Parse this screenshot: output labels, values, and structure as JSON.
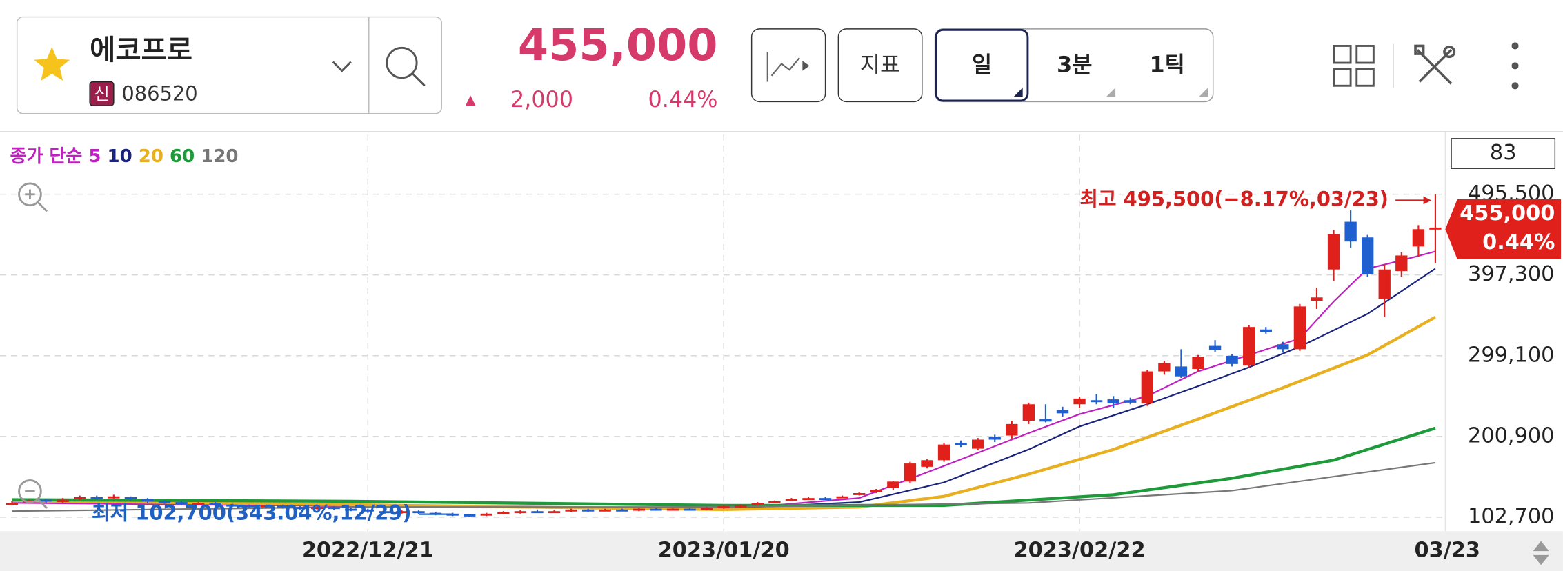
{
  "header": {
    "name": "에코프로",
    "badge": "신",
    "code": "086520",
    "price": "455,000",
    "change_arrow": "▲",
    "change": "2,000",
    "change_pct": "0.44%",
    "buttons": [
      "지표",
      "일",
      "3분",
      "1틱"
    ]
  },
  "chart_data": {
    "type": "candlestick",
    "legend_prefix": "종가 단순",
    "count_box": "83",
    "price_tag": {
      "price": "455,000",
      "pct": "0.44%"
    },
    "annotations": {
      "high": "최고 495,500(−8.17%,03/23)",
      "low": "최저 102,700(343.04%,12/29)"
    },
    "up_color": "#e0201a",
    "down_color": "#1f5fd0",
    "categories": [
      null,
      null,
      null,
      null,
      null,
      null,
      null,
      null,
      null,
      null,
      null,
      null,
      null,
      null,
      null,
      null,
      null,
      null,
      null,
      null,
      null,
      "2022/12/21",
      null,
      null,
      null,
      null,
      null,
      null,
      null,
      null,
      null,
      null,
      null,
      null,
      null,
      null,
      null,
      null,
      null,
      null,
      null,
      null,
      "2023/01/20",
      null,
      null,
      null,
      null,
      null,
      null,
      null,
      null,
      null,
      null,
      null,
      null,
      null,
      null,
      null,
      null,
      null,
      null,
      null,
      null,
      "2023/02/22",
      null,
      null,
      null,
      null,
      null,
      null,
      null,
      null,
      null,
      null,
      null,
      null,
      null,
      null,
      null,
      null,
      null,
      null,
      null,
      null,
      "03/23"
    ],
    "open": [
      118000,
      121000,
      124000,
      121000,
      125000,
      127000,
      126000,
      127000,
      125000,
      122000,
      121000,
      119000,
      120000,
      118000,
      117000,
      116000,
      117000,
      115000,
      114000,
      115000,
      113000,
      112000,
      110000,
      109000,
      110000,
      108000,
      107000,
      106000,
      105000,
      107000,
      109000,
      110000,
      109000,
      110000,
      112000,
      111000,
      112000,
      111000,
      113000,
      112000,
      113000,
      112000,
      114000,
      116000,
      118000,
      121000,
      123000,
      125000,
      126000,
      127000,
      131000,
      134000,
      138000,
      146000,
      164000,
      172000,
      193000,
      186000,
      200000,
      202000,
      220000,
      222000,
      233000,
      240000,
      245000,
      246000,
      245000,
      241000,
      280000,
      286000,
      283000,
      311000,
      299000,
      287000,
      331000,
      313000,
      307000,
      366000,
      404000,
      462000,
      443000,
      368000,
      402000,
      432000,
      453000
    ],
    "high": [
      122000,
      124000,
      125000,
      126000,
      129000,
      129000,
      130000,
      128000,
      126000,
      123000,
      122000,
      121000,
      121000,
      119000,
      118000,
      118000,
      118000,
      116000,
      116000,
      116000,
      114000,
      113000,
      112000,
      111000,
      111000,
      109000,
      108000,
      106000,
      108000,
      110000,
      111000,
      112000,
      111000,
      113000,
      113000,
      113000,
      113000,
      114000,
      114000,
      114000,
      114000,
      115000,
      117000,
      118000,
      121000,
      123000,
      126000,
      127000,
      127000,
      129000,
      133000,
      137000,
      147000,
      170000,
      173000,
      193000,
      196000,
      199000,
      203000,
      220000,
      242000,
      240000,
      237000,
      249000,
      252000,
      250000,
      248000,
      282000,
      293000,
      307000,
      300000,
      318000,
      301000,
      336000,
      334000,
      316000,
      362000,
      382000,
      452000,
      476000,
      446000,
      410000,
      425000,
      458000,
      495500
    ],
    "low": [
      117000,
      119000,
      120000,
      120000,
      123000,
      124000,
      125000,
      123000,
      120000,
      119000,
      117000,
      117000,
      116000,
      115000,
      114000,
      114000,
      113000,
      112000,
      112000,
      111000,
      110000,
      108000,
      107000,
      107000,
      106000,
      105000,
      104000,
      102700,
      104000,
      106000,
      107000,
      108000,
      108000,
      109000,
      109000,
      110000,
      110000,
      110000,
      111000,
      111000,
      111000,
      111000,
      113000,
      114000,
      117000,
      120000,
      122000,
      124000,
      124000,
      126000,
      129000,
      132000,
      136000,
      144000,
      162000,
      170000,
      188000,
      184000,
      194000,
      198000,
      216000,
      218000,
      225000,
      236000,
      240000,
      236000,
      240000,
      238000,
      276000,
      272000,
      280000,
      304000,
      286000,
      285000,
      326000,
      303000,
      305000,
      356000,
      390000,
      430000,
      395000,
      346000,
      395000,
      420000,
      412000
    ],
    "close": [
      120000,
      123000,
      122000,
      124000,
      127000,
      126000,
      128000,
      125000,
      122000,
      121000,
      119000,
      120000,
      118000,
      117000,
      116000,
      117000,
      115000,
      114000,
      115000,
      113000,
      112000,
      110000,
      109000,
      110000,
      108000,
      107000,
      106000,
      105000,
      107000,
      109000,
      110000,
      109000,
      110000,
      112000,
      111000,
      112000,
      111000,
      113000,
      112000,
      113000,
      112000,
      114000,
      116000,
      117000,
      120000,
      122000,
      125000,
      126000,
      125000,
      128000,
      132000,
      136000,
      146000,
      168000,
      172000,
      191000,
      190000,
      197000,
      197000,
      216000,
      240000,
      219000,
      229000,
      247000,
      243000,
      241000,
      242000,
      280000,
      290000,
      274000,
      298000,
      306000,
      289000,
      334000,
      328000,
      307000,
      359000,
      370000,
      447000,
      438000,
      398000,
      404000,
      421000,
      453000,
      455000
    ],
    "ma_series": [
      {
        "name": "5",
        "color": "#c020c0",
        "x": [
          0,
          42,
          50,
          55,
          60,
          63,
          67,
          70,
          73,
          76,
          78,
          80,
          82,
          84
        ],
        "values": [
          120000,
          112000,
          126000,
          165000,
          205000,
          228000,
          250000,
          280000,
          300000,
          320000,
          365000,
          405000,
          415000,
          426000
        ]
      },
      {
        "name": "10",
        "color": "#1a237e",
        "x": [
          0,
          42,
          50,
          55,
          60,
          63,
          67,
          70,
          73,
          76,
          80,
          84
        ],
        "values": [
          122000,
          113000,
          121000,
          145000,
          185000,
          213000,
          240000,
          262000,
          285000,
          310000,
          350000,
          405000
        ]
      },
      {
        "name": "20",
        "color": "#e8b020",
        "x": [
          0,
          42,
          50,
          55,
          60,
          65,
          70,
          75,
          80,
          84
        ],
        "values": [
          123000,
          112000,
          115000,
          128000,
          155000,
          185000,
          222000,
          260000,
          300000,
          346000
        ]
      },
      {
        "name": "60",
        "color": "#1e9a3a",
        "x": [
          0,
          20,
          42,
          55,
          65,
          72,
          78,
          84
        ],
        "values": [
          124000,
          122000,
          117000,
          117000,
          130000,
          150000,
          172000,
          211000
        ]
      },
      {
        "name": "120",
        "color": "#777777",
        "x": [
          0,
          20,
          42,
          60,
          72,
          84
        ],
        "values": [
          110000,
          115000,
          115000,
          120000,
          135000,
          169000
        ]
      }
    ],
    "ylim": [
      85700,
      568100
    ],
    "yticks": [
      {
        "value": 102700,
        "label": "102,700"
      },
      {
        "value": 200900,
        "label": "200,900"
      },
      {
        "value": 299100,
        "label": "299,100"
      },
      {
        "value": 397300,
        "label": "397,300"
      },
      {
        "value": 495500,
        "label": "495,500"
      }
    ],
    "grid": true
  }
}
